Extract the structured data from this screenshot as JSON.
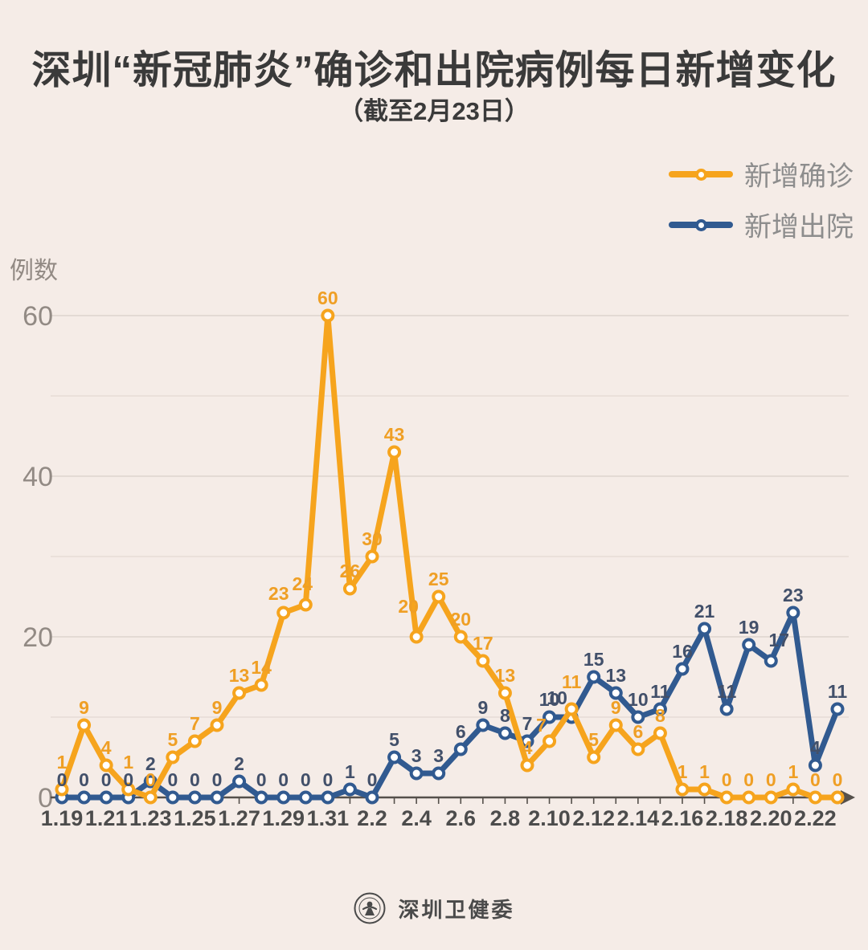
{
  "header": {
    "title": "深圳“新冠肺炎”确诊和出院病例每日新增变化",
    "subtitle": "（截至2月23日）"
  },
  "legend": {
    "items": [
      {
        "label": "新增确诊",
        "color": "#f6a41d"
      },
      {
        "label": "新增出院",
        "color": "#315a90"
      }
    ]
  },
  "chart_data": {
    "type": "line",
    "title": "深圳“新冠肺炎”确诊和出院病例每日新增变化",
    "subtitle": "（截至2月23日）",
    "ylabel": "例数",
    "x": [
      "1.19",
      "1.20",
      "1.21",
      "1.22",
      "1.23",
      "1.24",
      "1.25",
      "1.26",
      "1.27",
      "1.28",
      "1.29",
      "1.30",
      "1.31",
      "2.1",
      "2.2",
      "2.3",
      "2.4",
      "2.5",
      "2.6",
      "2.7",
      "2.8",
      "2.9",
      "2.10",
      "2.11",
      "2.12",
      "2.13",
      "2.14",
      "2.15",
      "2.16",
      "2.17",
      "2.18",
      "2.19",
      "2.20",
      "2.21",
      "2.22",
      "2.23"
    ],
    "x_labeled_every": 2,
    "series": [
      {
        "name": "新增确诊",
        "color": "#f6a41d",
        "label_color": "#ef9f25",
        "values": [
          1,
          9,
          4,
          1,
          0,
          5,
          7,
          9,
          13,
          14,
          23,
          24,
          60,
          26,
          30,
          43,
          20,
          25,
          20,
          17,
          13,
          4,
          7,
          11,
          5,
          9,
          6,
          8,
          1,
          1,
          0,
          0,
          0,
          1,
          0,
          0
        ],
        "label_offsets": {
          "0": [
            0,
            -12
          ],
          "3": [
            0,
            -12
          ],
          "10": [
            -6,
            -2
          ],
          "11": [
            -4,
            -4
          ],
          "16": [
            -10,
            -16
          ],
          "22": [
            -10,
            2
          ],
          "23": [
            0,
            -12
          ]
        }
      },
      {
        "name": "新增出院",
        "color": "#315a90",
        "label_color": "#42506a",
        "values": [
          0,
          0,
          0,
          0,
          2,
          0,
          0,
          0,
          2,
          0,
          0,
          0,
          0,
          1,
          0,
          5,
          3,
          3,
          6,
          9,
          8,
          7,
          10,
          10,
          15,
          13,
          10,
          11,
          16,
          21,
          11,
          19,
          17,
          23,
          4,
          11
        ],
        "label_offsets": {
          "23": [
            -18,
            -2
          ],
          "32": [
            10,
            -4
          ]
        }
      }
    ],
    "ylim": [
      0,
      65
    ],
    "yticks_labeled": [
      0,
      20,
      40,
      60
    ],
    "grid_every": 10,
    "grid_on": true,
    "legend_position": "top-right"
  },
  "footer": {
    "brand": "深圳卫健委"
  },
  "colors": {
    "background": "#f5ece7",
    "axis": "#55504b",
    "grid_major": "#ddd3cd",
    "grid_minor": "#e6dcd6",
    "tick_label": "#4c4c4c",
    "ytick_label": "#928a84"
  }
}
